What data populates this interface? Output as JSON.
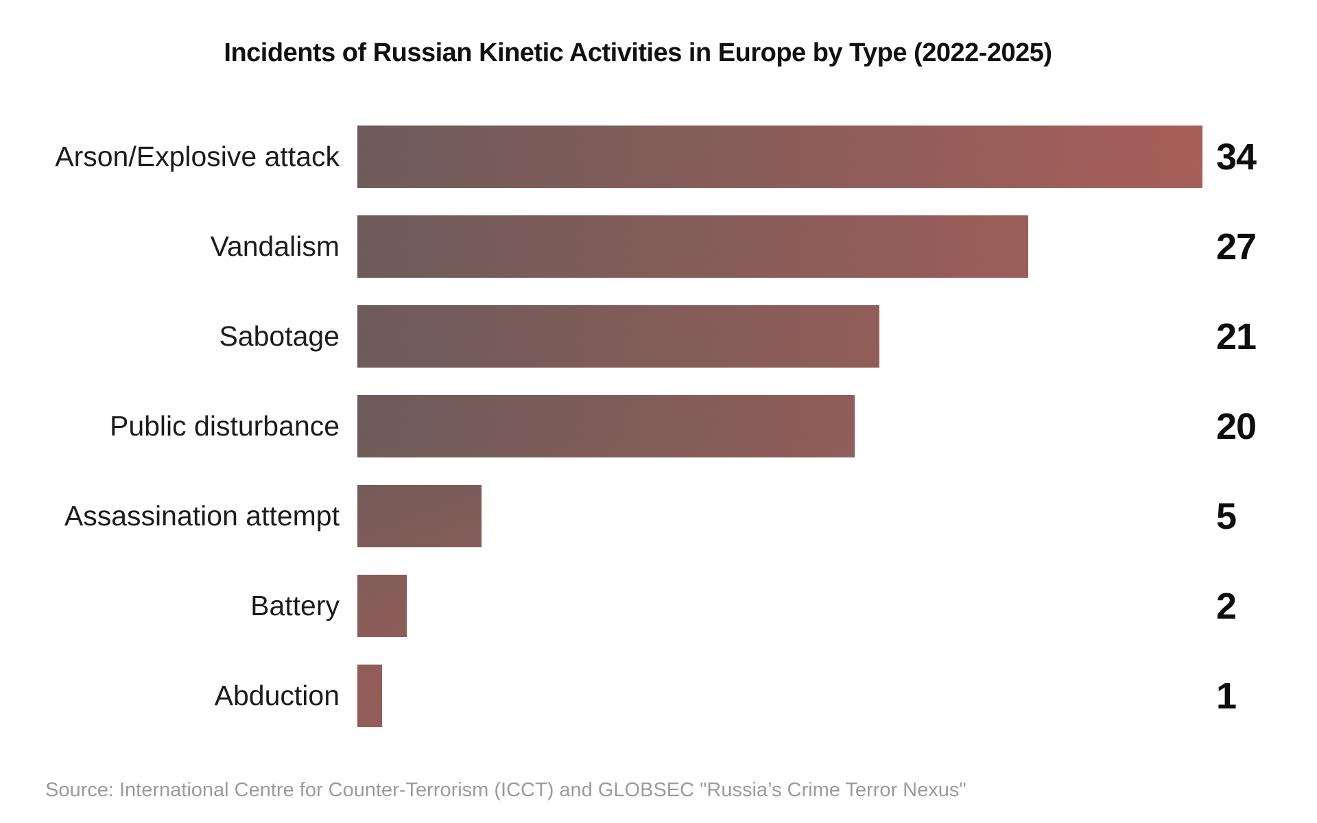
{
  "title": "Incidents of Russian Kinetic Activities in Europe by Type (2022-2025)",
  "source": "Source: International Centre for Counter-Terrorism (ICCT) and GLOBSEC \"Russia’s Crime Terror Nexus\"",
  "colors": {
    "background": "#ffffff",
    "bar_gradient_start": "#6b5957",
    "bar_gradient_end": "#a65c57",
    "bar_bottom_tint": "#aa5c56",
    "title_text": "#111111",
    "category_text": "#1c1c1c",
    "value_text": "#0e0e0e",
    "source_text": "#9b9b9b"
  },
  "chart_data": {
    "type": "bar",
    "orientation": "horizontal",
    "title": "Incidents of Russian Kinetic Activities in Europe by Type (2022-2025)",
    "categories": [
      "Arson/Explosive attack",
      "Vandalism",
      "Sabotage",
      "Public disturbance",
      "Assassination attempt",
      "Battery",
      "Abduction"
    ],
    "values": [
      34,
      27,
      21,
      20,
      5,
      2,
      1
    ],
    "xlabel": "",
    "ylabel": "",
    "xlim": [
      0,
      34
    ],
    "grid": false,
    "axis_lines": false,
    "value_labels_position": "right of bar end",
    "bar_fill": "gray-brown to brick-red gradient with grain texture",
    "legend": null,
    "source_note": "Source: International Centre for Counter-Terrorism (ICCT) and GLOBSEC \"Russia’s Crime Terror Nexus\""
  }
}
